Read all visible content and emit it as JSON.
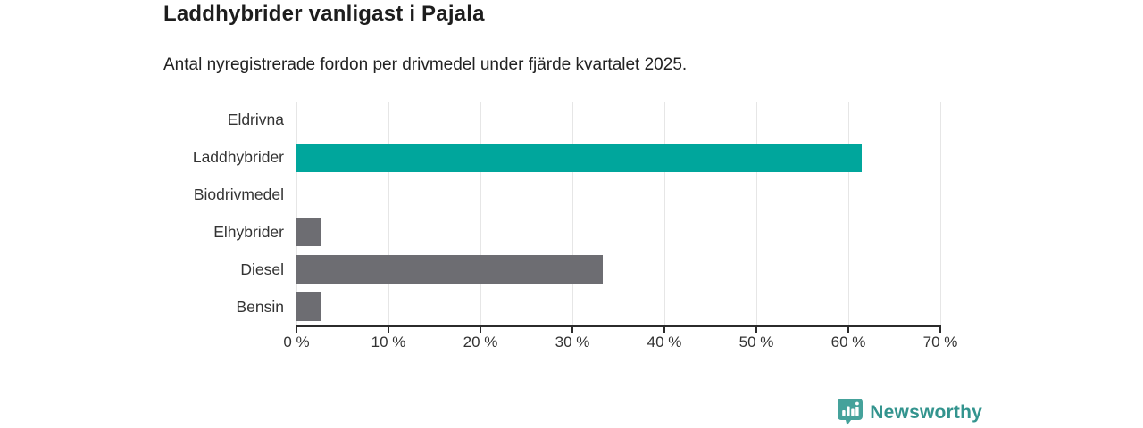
{
  "header": {
    "title": "Laddhybrider vanligast i Pajala",
    "subtitle": "Antal nyregistrerade fordon per drivmedel under fjärde kvartalet 2025."
  },
  "chart_data": {
    "type": "bar",
    "orientation": "horizontal",
    "title": "Laddhybrider vanligast i Pajala",
    "subtitle": "Antal nyregistrerade fordon per drivmedel under fjärde kvartalet 2025.",
    "categories": [
      "Eldrivna",
      "Laddhybrider",
      "Biodrivmedel",
      "Elhybrider",
      "Diesel",
      "Bensin"
    ],
    "values": [
      0,
      61.5,
      0,
      2.6,
      33.3,
      2.6
    ],
    "unit": "%",
    "xlim": [
      0,
      70
    ],
    "xticks": [
      0,
      10,
      20,
      30,
      40,
      50,
      60,
      70
    ],
    "xtick_suffix": " %",
    "grid": true,
    "legend": "none",
    "colors": {
      "highlight": "#00a69c",
      "default": "#6d6d72",
      "gridline": "#e6e6e6",
      "axis": "#2b2b2b",
      "text": "#333333"
    },
    "bar_colors": [
      "#6d6d72",
      "#00a69c",
      "#6d6d72",
      "#6d6d72",
      "#6d6d72",
      "#6d6d72"
    ]
  },
  "footer": {
    "brand": "Newsworthy",
    "brand_text_color": "#33948e",
    "logo_bubble_color": "#45a29b",
    "logo_icon": "bar-chart-speech-bubble-icon"
  }
}
